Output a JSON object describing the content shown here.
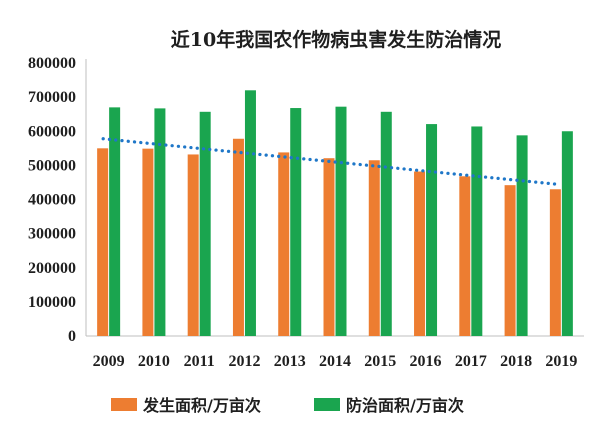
{
  "chart_data": {
    "type": "bar",
    "title": "近10年我国农作物病虫害发生防治情况",
    "categories": [
      "2009",
      "2010",
      "2011",
      "2012",
      "2013",
      "2014",
      "2015",
      "2016",
      "2017",
      "2018",
      "2019"
    ],
    "series": [
      {
        "name": "发生面积/万亩次",
        "color": "#ed7d31",
        "values": [
          550000,
          549000,
          532000,
          578000,
          538000,
          521000,
          515000,
          482000,
          468000,
          442000,
          430000
        ]
      },
      {
        "name": "防治面积/万亩次",
        "color": "#1aa54f",
        "values": [
          670000,
          667000,
          657000,
          720000,
          668000,
          672000,
          657000,
          621000,
          614000,
          588000,
          600000
        ]
      }
    ],
    "trendline": {
      "of_series": "发生面积/万亩次",
      "color": "#1f77c8",
      "style": "dotted",
      "start": 578000,
      "end": 445000
    },
    "ylim": [
      0,
      800000
    ],
    "yticks": [
      "0",
      "100000",
      "200000",
      "300000",
      "400000",
      "500000",
      "600000",
      "700000",
      "800000"
    ],
    "xlabel": "",
    "ylabel": "",
    "legend_position": "bottom",
    "grid": false
  }
}
